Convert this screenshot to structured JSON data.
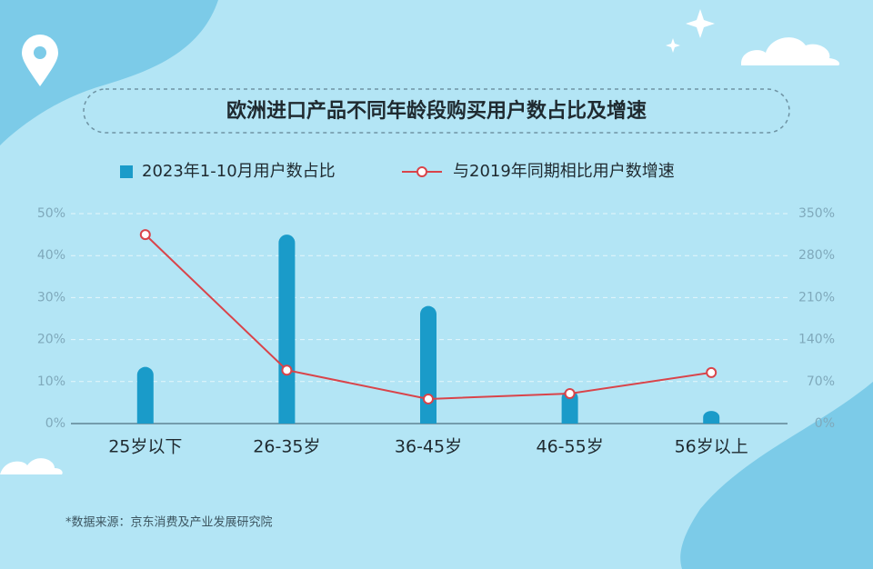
{
  "chart_data": {
    "type": "bar",
    "title": "欧洲进口产品不同年龄段购买用户数占比及增速",
    "source": "*数据来源：京东消费及产业发展研究院",
    "categories": [
      "25岁以下",
      "26-35岁",
      "36-45岁",
      "46-55岁",
      "56岁以上"
    ],
    "series": [
      {
        "name": "2023年1-10月用户数占比",
        "type": "bar",
        "color": "#1a9bc9",
        "values": [
          13.5,
          45,
          28,
          8,
          3
        ]
      },
      {
        "name": "与2019年同期相比用户数增速",
        "type": "line",
        "axis": "y2",
        "color": "#d9444a",
        "values": [
          315,
          89,
          41,
          50,
          85
        ]
      }
    ],
    "ylim": [
      0,
      50
    ],
    "yticks": [
      {
        "value": 0,
        "label": "0%"
      },
      {
        "value": 10,
        "label": "10%"
      },
      {
        "value": 20,
        "label": "20%"
      },
      {
        "value": 30,
        "label": "30%"
      },
      {
        "value": 40,
        "label": "40%"
      },
      {
        "value": 50,
        "label": "50%"
      }
    ],
    "y2lim": [
      0,
      350
    ],
    "y2ticks": [
      {
        "value": 0,
        "label": "0%"
      },
      {
        "value": 70,
        "label": "70%"
      },
      {
        "value": 140,
        "label": "140%"
      },
      {
        "value": 210,
        "label": "210%"
      },
      {
        "value": 280,
        "label": "280%"
      },
      {
        "value": 350,
        "label": "350%"
      }
    ],
    "grid": true
  }
}
